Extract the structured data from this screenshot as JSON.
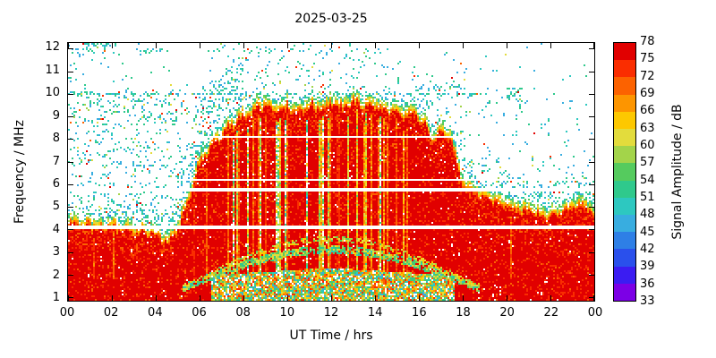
{
  "chart_data": {
    "type": "heatmap",
    "title": "2025-03-25",
    "xlabel": "UT Time / hrs",
    "ylabel": "Frequency / MHz",
    "colorbar_label": "Signal Amplitude / dB",
    "x_range": [
      0,
      24
    ],
    "x_tick_values": [
      0,
      2,
      4,
      6,
      8,
      10,
      12,
      14,
      16,
      18,
      20,
      22,
      24
    ],
    "x_tick_labels": [
      "00",
      "02",
      "04",
      "06",
      "08",
      "10",
      "12",
      "14",
      "16",
      "18",
      "20",
      "22",
      "00"
    ],
    "y_ticks": [
      1,
      2,
      3,
      4,
      5,
      6,
      7,
      8,
      9,
      10,
      11,
      12
    ],
    "y_view_range": [
      0.85,
      12.25
    ],
    "colorbar": {
      "min": 33,
      "max": 78,
      "step": 3,
      "tick_labels": [
        "78",
        "75",
        "72",
        "69",
        "66",
        "63",
        "60",
        "57",
        "54",
        "51",
        "48",
        "45",
        "42",
        "39",
        "36",
        "33"
      ],
      "colors_low_to_high": [
        "#7c00e6",
        "#3b1cf2",
        "#2a50ec",
        "#2e7fe6",
        "#38ade0",
        "#2dc8c0",
        "#2fc98c",
        "#55cb5e",
        "#a3d44a",
        "#e3dc3c",
        "#fdc800",
        "#fd9500",
        "#fc6200",
        "#fa2d00",
        "#e10000"
      ]
    },
    "fof2_envelope_mhz": [
      [
        0,
        4.3
      ],
      [
        1,
        4.2
      ],
      [
        2,
        4.1
      ],
      [
        3,
        4.0
      ],
      [
        3.8,
        3.9
      ],
      [
        4.3,
        3.5
      ],
      [
        4.8,
        3.7
      ],
      [
        5.2,
        4.5
      ],
      [
        5.6,
        5.8
      ],
      [
        6,
        7.0
      ],
      [
        6.5,
        7.7
      ],
      [
        7,
        8.2
      ],
      [
        7.5,
        8.7
      ],
      [
        8,
        9.0
      ],
      [
        8.5,
        9.3
      ],
      [
        9,
        9.6
      ],
      [
        9.5,
        9.2
      ],
      [
        10,
        9.5
      ],
      [
        10.5,
        9.1
      ],
      [
        11,
        9.6
      ],
      [
        11.5,
        9.3
      ],
      [
        12,
        9.6
      ],
      [
        12.5,
        9.4
      ],
      [
        13,
        9.7
      ],
      [
        13.5,
        9.5
      ],
      [
        14,
        9.6
      ],
      [
        14.5,
        9.3
      ],
      [
        15,
        9.2
      ],
      [
        15.5,
        9.1
      ],
      [
        16,
        9.0
      ],
      [
        16.4,
        8.5
      ],
      [
        16.7,
        7.9
      ],
      [
        17,
        8.4
      ],
      [
        17.5,
        8.0
      ],
      [
        17.9,
        6.3
      ],
      [
        18.3,
        5.7
      ],
      [
        19,
        5.5
      ],
      [
        20,
        5.1
      ],
      [
        21,
        4.8
      ],
      [
        22,
        4.6
      ],
      [
        22.8,
        4.9
      ],
      [
        23.4,
        5.1
      ],
      [
        24,
        4.7
      ]
    ],
    "blanked_frequencies_mhz": [
      4.1,
      5.75,
      6.2,
      8.1
    ],
    "es_trace_mhz": 10.0,
    "absorption_arc": {
      "t_start": 5.2,
      "t_end": 18.8,
      "base_mhz": 1.4,
      "peak_mhz": 3.1
    },
    "white_block": {
      "t": [
        4.65,
        6.4
      ],
      "f": [
        10.4,
        12.25
      ]
    },
    "noise_seed": 20250325
  }
}
